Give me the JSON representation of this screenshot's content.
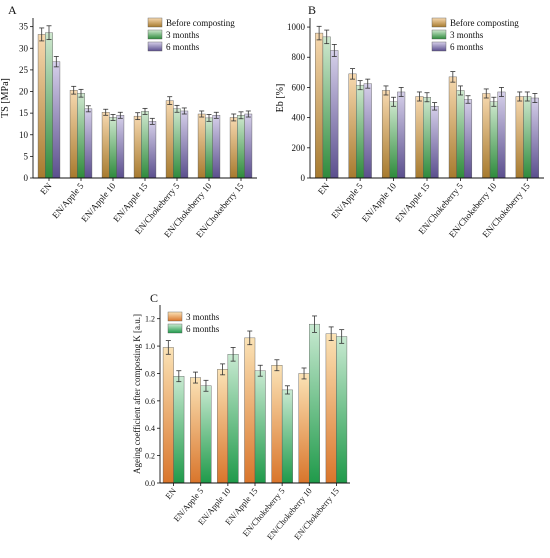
{
  "colors": {
    "before": [
      "#f7d9b0",
      "#a77a2e"
    ],
    "m3": [
      "#cfe8cf",
      "#2e8b3c"
    ],
    "m6": [
      "#d6d0ea",
      "#5b4f8e"
    ],
    "k3": [
      "#fbe3b6",
      "#d9752b"
    ],
    "k6": [
      "#c9ead2",
      "#1f9a4a"
    ]
  },
  "chart_data": [
    {
      "panel": "A",
      "type": "bar",
      "ylabel": "TS [MPa]",
      "ylim": [
        0,
        37
      ],
      "yticks": [
        0,
        5,
        10,
        15,
        20,
        25,
        30,
        35
      ],
      "categories": [
        "EN",
        "EN/Apple 5",
        "EN/Apple 10",
        "EN/Apple 15",
        "EN/Chokeberry 5",
        "EN/Chokeberry 10",
        "EN/Chokeberry 15"
      ],
      "legend_position": "top-right",
      "series": [
        {
          "name": "Before composting",
          "color_key": "before",
          "values": [
            33.2,
            20.3,
            15.2,
            14.3,
            17.9,
            14.8,
            14.0
          ],
          "errors": [
            1.5,
            0.9,
            0.7,
            0.8,
            0.9,
            0.7,
            0.8
          ]
        },
        {
          "name": "3 months",
          "color_key": "m3",
          "values": [
            33.6,
            19.6,
            14.0,
            15.4,
            16.0,
            13.9,
            14.5
          ],
          "errors": [
            1.6,
            0.9,
            0.7,
            0.7,
            0.8,
            0.8,
            0.8
          ]
        },
        {
          "name": "6 months",
          "color_key": "m6",
          "values": [
            26.9,
            16.0,
            14.5,
            13.1,
            15.5,
            14.5,
            14.8
          ],
          "errors": [
            1.2,
            0.7,
            0.7,
            0.7,
            0.7,
            0.7,
            0.7
          ]
        }
      ]
    },
    {
      "panel": "B",
      "type": "bar",
      "ylabel": "Eb [%]",
      "ylim": [
        0,
        1060
      ],
      "yticks": [
        0,
        200,
        400,
        600,
        800,
        1000
      ],
      "categories": [
        "EN",
        "EN/Apple 5",
        "EN/Apple 10",
        "EN/Apple 15",
        "EN/Chokeberry 5",
        "EN/Chokeberry 10",
        "EN/Chokeberry 15"
      ],
      "legend_position": "top-right",
      "series": [
        {
          "name": "Before composting",
          "color_key": "before",
          "values": [
            960,
            690,
            580,
            540,
            670,
            560,
            540
          ],
          "errors": [
            45,
            35,
            30,
            30,
            35,
            30,
            30
          ]
        },
        {
          "name": "3 months",
          "color_key": "m3",
          "values": [
            935,
            615,
            505,
            535,
            580,
            505,
            540
          ],
          "errors": [
            45,
            30,
            30,
            30,
            30,
            30,
            30
          ]
        },
        {
          "name": "6 months",
          "color_key": "m6",
          "values": [
            845,
            625,
            570,
            475,
            520,
            570,
            530
          ],
          "errors": [
            40,
            30,
            30,
            25,
            25,
            30,
            30
          ]
        }
      ]
    },
    {
      "panel": "C",
      "type": "bar",
      "ylabel": "Ageing coefficient after composting K [a.u.]",
      "ylim": [
        0,
        1.3
      ],
      "yticks": [
        0.0,
        0.2,
        0.4,
        0.6,
        0.8,
        1.0,
        1.2
      ],
      "categories": [
        "EN",
        "EN/Apple 5",
        "EN/Apple 10",
        "EN/Apple 15",
        "EN/Chokeberry 5",
        "EN/Chokeberry 10",
        "EN/Chokeberry 15"
      ],
      "legend_position": "top-left",
      "series": [
        {
          "name": "3 months",
          "color_key": "k3",
          "values": [
            0.99,
            0.77,
            0.83,
            1.06,
            0.86,
            0.8,
            1.09
          ],
          "errors": [
            0.05,
            0.04,
            0.04,
            0.05,
            0.04,
            0.04,
            0.05
          ]
        },
        {
          "name": "6 months",
          "color_key": "k6",
          "values": [
            0.78,
            0.71,
            0.94,
            0.82,
            0.68,
            1.16,
            1.07
          ],
          "errors": [
            0.04,
            0.04,
            0.05,
            0.04,
            0.03,
            0.06,
            0.05
          ]
        }
      ]
    }
  ]
}
